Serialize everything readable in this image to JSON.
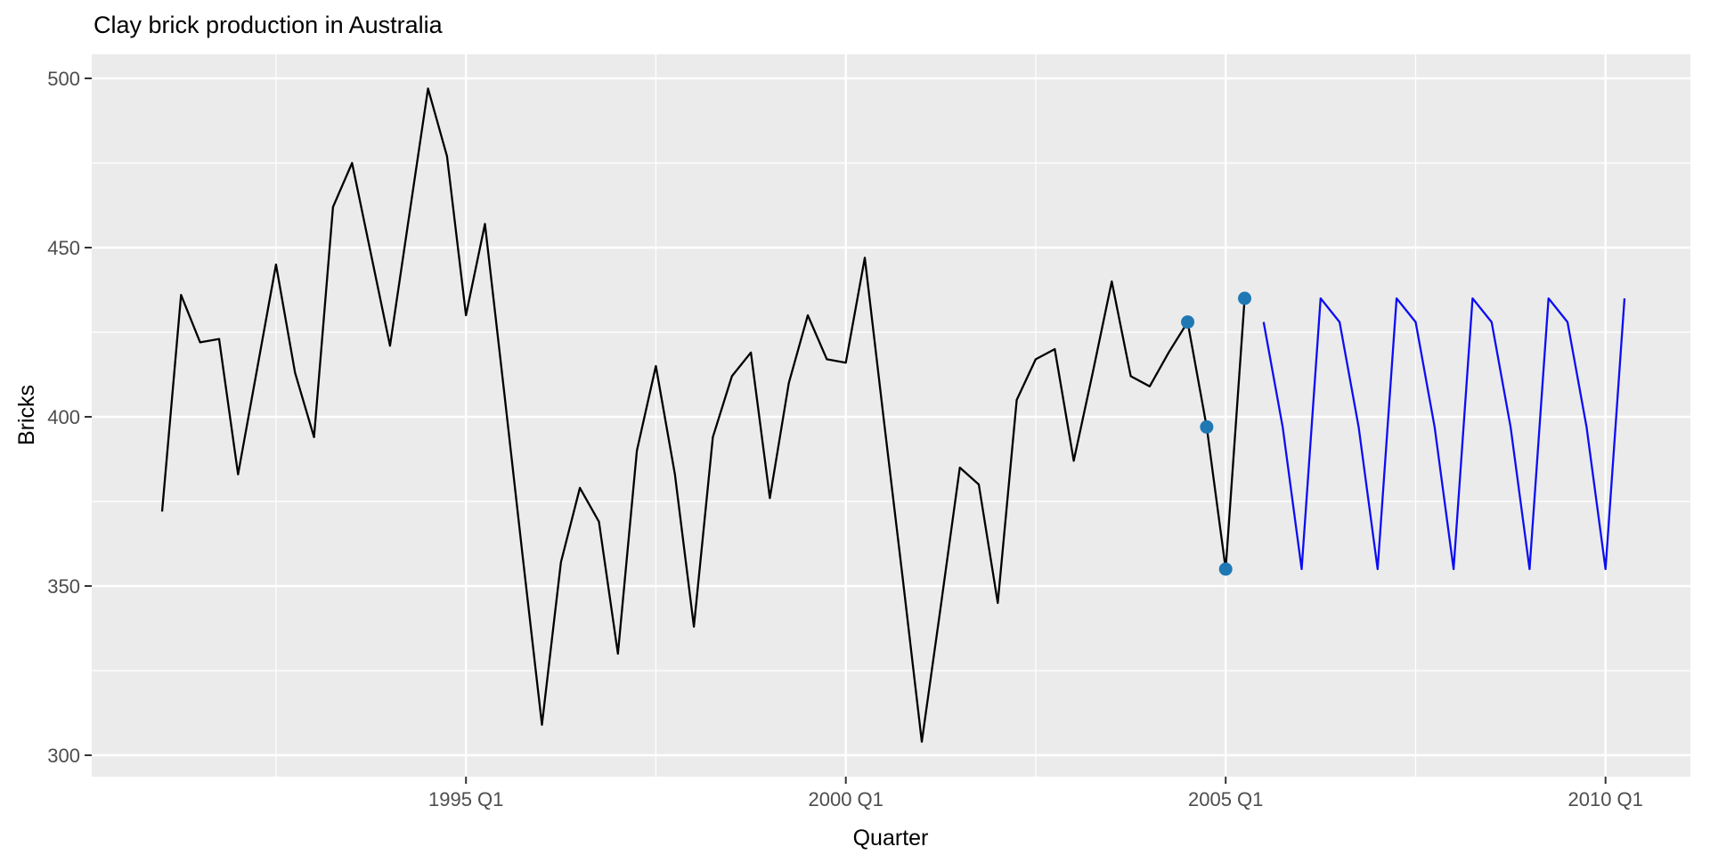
{
  "colors": {
    "panel_bg": "#EBEBEB",
    "grid": "#FFFFFF",
    "tick_mark": "#333333",
    "tick_label": "#4D4D4D",
    "observed_line": "#000000",
    "forecast_line": "#0D0DF2",
    "highlight_point": "#1F78B4",
    "title_text": "#000000"
  },
  "chart_data": {
    "type": "line",
    "title": "Clay brick production in Australia",
    "xlabel": "Quarter",
    "ylabel": "Bricks",
    "x_tick_labels": [
      "1995 Q1",
      "2000 Q1",
      "2005 Q1",
      "2010 Q1"
    ],
    "x_minor_quarters": [
      "1992 Q3",
      "1997 Q3",
      "2002 Q3",
      "2007 Q3"
    ],
    "y_ticks": [
      300,
      350,
      400,
      450,
      500
    ],
    "y_minor_ticks": [
      325,
      375,
      425,
      475
    ],
    "ylim": [
      293.7,
      507.1
    ],
    "xlim_quarters": [
      "1990 Q1",
      "2011 Q1"
    ],
    "grid": "on",
    "legend": "none",
    "series": [
      {
        "name": "observed",
        "color_key": "observed_line",
        "start": "1991 Q1",
        "values": [
          372,
          436,
          422,
          423,
          383,
          414,
          445,
          413,
          394,
          462,
          475,
          448,
          421,
          459,
          497,
          477,
          430,
          457,
          408,
          358,
          309,
          357,
          379,
          369,
          330,
          390,
          415,
          383,
          338,
          394,
          412,
          419,
          376,
          410,
          430,
          417,
          416,
          447,
          399,
          352,
          304,
          344,
          385,
          380,
          345,
          405,
          417,
          420,
          387,
          413,
          440,
          412,
          409,
          419,
          428,
          397,
          355,
          435
        ]
      },
      {
        "name": "seasonal-naive-forecast",
        "color_key": "forecast_line",
        "start": "2005 Q3",
        "values": [
          428,
          397,
          355,
          435,
          428,
          397,
          355,
          435,
          428,
          397,
          355,
          435,
          428,
          397,
          355,
          435,
          428,
          397,
          355,
          435
        ]
      }
    ],
    "highlight_points": {
      "name": "last-four-observations",
      "color_key": "highlight_point",
      "start": "2004 Q3",
      "values": [
        428,
        397,
        355,
        435
      ]
    }
  }
}
